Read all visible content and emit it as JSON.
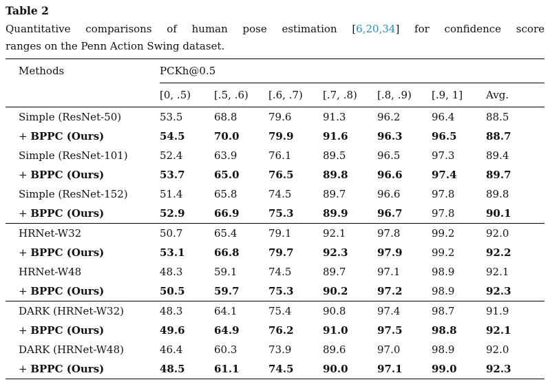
{
  "accent_color": "#2b8fb3",
  "title": "Table 2",
  "caption": {
    "line1_before": "Quantitative comparisons of human pose estimation [",
    "citations": "6,20,34",
    "line1_after": "] for confidence score",
    "line2": "ranges on the Penn Action Swing dataset."
  },
  "table": {
    "methods_header": "Methods",
    "group_header": "PCKh@0.5",
    "columns": [
      "[0, .5)",
      "[.5, .6)",
      "[.6, .7)",
      "[.7, .8)",
      "[.8, .9)",
      "[.9, 1]",
      "Avg."
    ],
    "sections": [
      {
        "rows": [
          {
            "prefix": "",
            "method": "Simple (ResNet-50)",
            "method_bold": false,
            "values": [
              "53.5",
              "68.8",
              "79.6",
              "91.3",
              "96.2",
              "96.4",
              "88.5"
            ],
            "bold": [
              false,
              false,
              false,
              false,
              false,
              false,
              false
            ]
          },
          {
            "prefix": "+ ",
            "method": "BPPC (Ours)",
            "method_bold": true,
            "values": [
              "54.5",
              "70.0",
              "79.9",
              "91.6",
              "96.3",
              "96.5",
              "88.7"
            ],
            "bold": [
              true,
              true,
              true,
              true,
              true,
              true,
              true
            ]
          },
          {
            "prefix": "",
            "method": "Simple (ResNet-101)",
            "method_bold": false,
            "values": [
              "52.4",
              "63.9",
              "76.1",
              "89.5",
              "96.5",
              "97.3",
              "89.4"
            ],
            "bold": [
              false,
              false,
              false,
              false,
              false,
              false,
              false
            ]
          },
          {
            "prefix": "+ ",
            "method": "BPPC (Ours)",
            "method_bold": true,
            "values": [
              "53.7",
              "65.0",
              "76.5",
              "89.8",
              "96.6",
              "97.4",
              "89.7"
            ],
            "bold": [
              true,
              true,
              true,
              true,
              true,
              true,
              true
            ]
          },
          {
            "prefix": "",
            "method": "Simple (ResNet-152)",
            "method_bold": false,
            "values": [
              "51.4",
              "65.8",
              "74.5",
              "89.7",
              "96.6",
              "97.8",
              "89.8"
            ],
            "bold": [
              false,
              false,
              false,
              false,
              false,
              false,
              false
            ]
          },
          {
            "prefix": "+ ",
            "method": "BPPC (Ours)",
            "method_bold": true,
            "values": [
              "52.9",
              "66.9",
              "75.3",
              "89.9",
              "96.7",
              "97.8",
              "90.1"
            ],
            "bold": [
              true,
              true,
              true,
              true,
              true,
              false,
              true
            ]
          }
        ]
      },
      {
        "rows": [
          {
            "prefix": "",
            "method": "HRNet-W32",
            "method_bold": false,
            "values": [
              "50.7",
              "65.4",
              "79.1",
              "92.1",
              "97.8",
              "99.2",
              "92.0"
            ],
            "bold": [
              false,
              false,
              false,
              false,
              false,
              false,
              false
            ]
          },
          {
            "prefix": "+ ",
            "method": "BPPC (Ours)",
            "method_bold": true,
            "values": [
              "53.1",
              "66.8",
              "79.7",
              "92.3",
              "97.9",
              "99.2",
              "92.2"
            ],
            "bold": [
              true,
              true,
              true,
              true,
              true,
              false,
              true
            ]
          },
          {
            "prefix": "",
            "method": "HRNet-W48",
            "method_bold": false,
            "values": [
              "48.3",
              "59.1",
              "74.5",
              "89.7",
              "97.1",
              "98.9",
              "92.1"
            ],
            "bold": [
              false,
              false,
              false,
              false,
              false,
              false,
              false
            ]
          },
          {
            "prefix": "+ ",
            "method": "BPPC (Ours)",
            "method_bold": true,
            "values": [
              "50.5",
              "59.7",
              "75.3",
              "90.2",
              "97.2",
              "98.9",
              "92.3"
            ],
            "bold": [
              true,
              true,
              true,
              true,
              true,
              false,
              true
            ]
          }
        ]
      },
      {
        "rows": [
          {
            "prefix": "",
            "method": "DARK (HRNet-W32)",
            "method_bold": false,
            "values": [
              "48.3",
              "64.1",
              "75.4",
              "90.8",
              "97.4",
              "98.7",
              "91.9"
            ],
            "bold": [
              false,
              false,
              false,
              false,
              false,
              false,
              false
            ]
          },
          {
            "prefix": "+ ",
            "method": "BPPC (Ours)",
            "method_bold": true,
            "values": [
              "49.6",
              "64.9",
              "76.2",
              "91.0",
              "97.5",
              "98.8",
              "92.1"
            ],
            "bold": [
              true,
              true,
              true,
              true,
              true,
              true,
              true
            ]
          },
          {
            "prefix": "",
            "method": "DARK (HRNet-W48)",
            "method_bold": false,
            "values": [
              "46.4",
              "60.3",
              "73.9",
              "89.6",
              "97.0",
              "98.9",
              "92.0"
            ],
            "bold": [
              false,
              false,
              false,
              false,
              false,
              false,
              false
            ]
          },
          {
            "prefix": "+ ",
            "method": "BPPC (Ours)",
            "method_bold": true,
            "values": [
              "48.5",
              "61.1",
              "74.5",
              "90.0",
              "97.1",
              "99.0",
              "92.3"
            ],
            "bold": [
              true,
              true,
              true,
              true,
              true,
              true,
              true
            ]
          }
        ]
      }
    ]
  }
}
